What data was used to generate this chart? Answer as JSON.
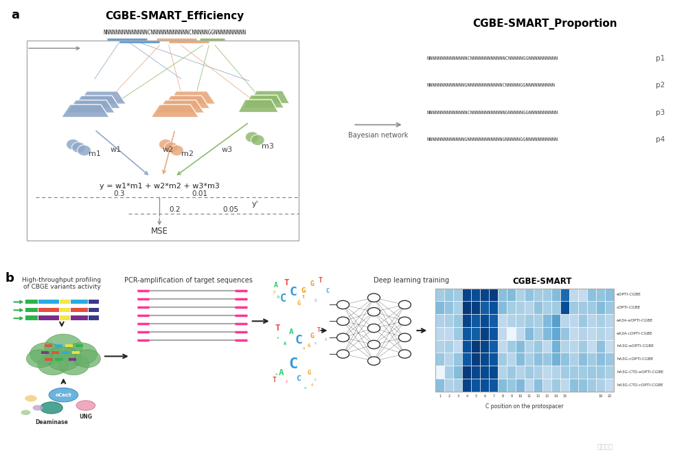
{
  "title_a": "CGBE-SMART_Efficiency",
  "title_proportion": "CGBE-SMART_Proportion",
  "title_cgbe": "CGBE-SMART",
  "sequence_top": "NNNNNNNNNNNNNNCNNNNNNNNNNNNCNNNNNGGNNNNNNNNNN",
  "p_labels": [
    "p1",
    "p2",
    "p3",
    "p4"
  ],
  "proportion_seqs": [
    "NNNNNNNNNNNNNNCNNNNNNNNNNNNCNNNNNGGNNNNNNNNNN",
    "NNNNNNNNNNNNNGNNNNNNNNNNNNCNNNNNGGNNNNNNNNNN",
    "NNNNNNNNNNNNNNCNNNNNNNNNNNNGNNNNNGGNNNNNNNNNN",
    "NNNNNNNNNNNNNGNNNNNNNNNNNNGNNNNNGGNNNNNNNNNNN"
  ],
  "bayesian_label": "Bayesian network",
  "module_colors": [
    "#8fa8c8",
    "#e8a87c",
    "#8fba6e"
  ],
  "module_labels": [
    "m1",
    "m2",
    "m3"
  ],
  "weight_labels": [
    "w1",
    "w2",
    "w3"
  ],
  "formula": "y = w1*m1 + w2*m2 + w3*m3",
  "mse_label": "MSE",
  "y_prime": "y'",
  "panel_a_label": "a",
  "panel_b_label": "b",
  "heatmap_rows": [
    "eOPTI-CGBE",
    "cOPTI-CGBE",
    "eA3A-eOPTI-CGBE",
    "eA3A-cOPTI-CGBE",
    "hA3G-eOPTI-CGBE",
    "hA3G-cOPTI-CGBE",
    "hA3G-CTD-eOPTI-CGBE",
    "hA3G-CTD-cOPTI-CGBE"
  ],
  "heatmap_cols": 20,
  "heatmap_xlabel": "C position on the protospacer",
  "bg_color": "#ffffff",
  "pcr_label": "PCR-amplification of target sequences",
  "dl_label": "Deep learning training",
  "htprofiling_label": "High-throughput profiling\nof CBGE variants activity"
}
